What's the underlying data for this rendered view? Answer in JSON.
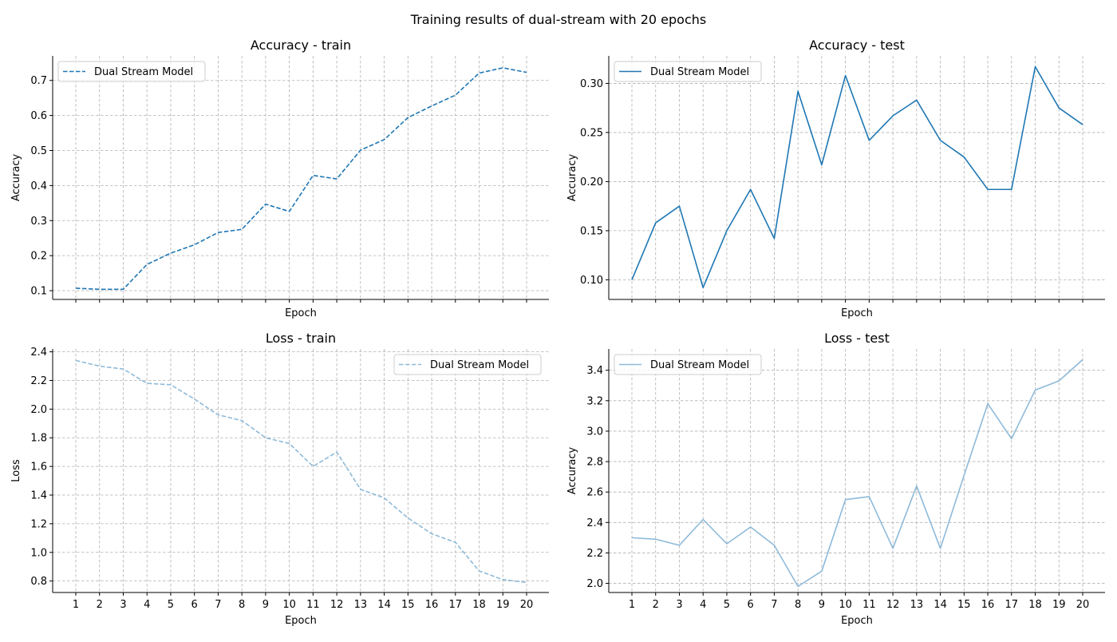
{
  "figure": {
    "suptitle": "Training results of dual-stream with 20 epochs"
  },
  "chart_data": [
    {
      "type": "line",
      "title": "Accuracy - train",
      "xlabel": "Epoch",
      "ylabel": "Accuracy",
      "x": [
        1,
        2,
        3,
        4,
        5,
        6,
        7,
        8,
        9,
        10,
        11,
        12,
        13,
        14,
        15,
        16,
        17,
        18,
        19,
        20
      ],
      "xticks_visible": false,
      "ylim": [
        0.075,
        0.77
      ],
      "yticks": [
        0.1,
        0.2,
        0.3,
        0.4,
        0.5,
        0.6,
        0.7
      ],
      "ytick_labels": [
        "0.1",
        "0.2",
        "0.3",
        "0.4",
        "0.5",
        "0.6",
        "0.7"
      ],
      "grid": true,
      "legend_position": "upper left",
      "series": [
        {
          "name": "Dual Stream Model",
          "color": "#1f77b4",
          "linestyle": "dashed",
          "values": [
            0.107,
            0.104,
            0.104,
            0.175,
            0.207,
            0.231,
            0.266,
            0.275,
            0.347,
            0.326,
            0.429,
            0.419,
            0.501,
            0.531,
            0.594,
            0.627,
            0.658,
            0.721,
            0.736,
            0.723
          ]
        }
      ]
    },
    {
      "type": "line",
      "title": "Accuracy - test",
      "xlabel": "Epoch",
      "ylabel": "Accuracy",
      "x": [
        1,
        2,
        3,
        4,
        5,
        6,
        7,
        8,
        9,
        10,
        11,
        12,
        13,
        14,
        15,
        16,
        17,
        18,
        19,
        20
      ],
      "xticks_visible": false,
      "ylim": [
        0.08,
        0.328
      ],
      "yticks": [
        0.1,
        0.15,
        0.2,
        0.25,
        0.3
      ],
      "ytick_labels": [
        "0.10",
        "0.15",
        "0.20",
        "0.25",
        "0.30"
      ],
      "grid": true,
      "legend_position": "upper left",
      "series": [
        {
          "name": "Dual Stream Model",
          "color": "#1f77b4",
          "linestyle": "solid",
          "values": [
            0.1,
            0.158,
            0.175,
            0.092,
            0.15,
            0.192,
            0.142,
            0.292,
            0.217,
            0.308,
            0.242,
            0.267,
            0.283,
            0.242,
            0.225,
            0.192,
            0.192,
            0.317,
            0.275,
            0.258
          ]
        }
      ]
    },
    {
      "type": "line",
      "title": "Loss - train",
      "xlabel": "Epoch",
      "ylabel": "Loss",
      "x": [
        1,
        2,
        3,
        4,
        5,
        6,
        7,
        8,
        9,
        10,
        11,
        12,
        13,
        14,
        15,
        16,
        17,
        18,
        19,
        20
      ],
      "xticks_visible": true,
      "ylim": [
        0.72,
        2.42
      ],
      "yticks": [
        0.8,
        1.0,
        1.2,
        1.4,
        1.6,
        1.8,
        2.0,
        2.2,
        2.4
      ],
      "ytick_labels": [
        "0.8",
        "1.0",
        "1.2",
        "1.4",
        "1.6",
        "1.8",
        "2.0",
        "2.2",
        "2.4"
      ],
      "grid": true,
      "legend_position": "upper right",
      "series": [
        {
          "name": "Dual Stream Model",
          "color": "#8ebad9",
          "linestyle": "dashed",
          "values": [
            2.34,
            2.3,
            2.28,
            2.18,
            2.17,
            2.07,
            1.96,
            1.92,
            1.8,
            1.76,
            1.6,
            1.7,
            1.44,
            1.38,
            1.24,
            1.13,
            1.07,
            0.87,
            0.81,
            0.79
          ]
        }
      ]
    },
    {
      "type": "line",
      "title": "Loss - test",
      "xlabel": "Epoch",
      "ylabel": "Accuracy",
      "x": [
        1,
        2,
        3,
        4,
        5,
        6,
        7,
        8,
        9,
        10,
        11,
        12,
        13,
        14,
        15,
        16,
        17,
        18,
        19,
        20
      ],
      "xticks_visible": true,
      "ylim": [
        1.94,
        3.54
      ],
      "yticks": [
        2.0,
        2.2,
        2.4,
        2.6,
        2.8,
        3.0,
        3.2,
        3.4
      ],
      "ytick_labels": [
        "2.0",
        "2.2",
        "2.4",
        "2.6",
        "2.8",
        "3.0",
        "3.2",
        "3.4"
      ],
      "grid": true,
      "legend_position": "upper left",
      "series": [
        {
          "name": "Dual Stream Model",
          "color": "#8ebad9",
          "linestyle": "solid",
          "values": [
            2.3,
            2.29,
            2.25,
            2.42,
            2.26,
            2.37,
            2.25,
            1.98,
            2.08,
            2.55,
            2.57,
            2.23,
            2.64,
            2.23,
            2.71,
            3.18,
            2.95,
            3.27,
            3.33,
            3.47
          ]
        }
      ]
    }
  ]
}
